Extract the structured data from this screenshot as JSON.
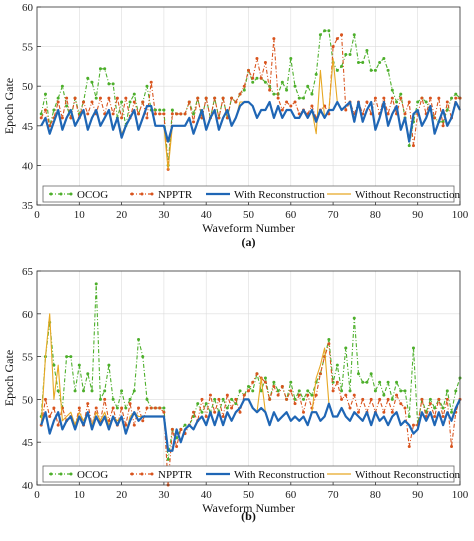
{
  "chart_data": [
    {
      "type": "line",
      "panel_label": "(a)",
      "xlabel": "Waveform Number",
      "ylabel": "Epoch Gate",
      "xlim": [
        0,
        100
      ],
      "ylim": [
        35,
        60
      ],
      "xticks": [
        0,
        10,
        20,
        30,
        40,
        50,
        60,
        70,
        80,
        90,
        100
      ],
      "yticks": [
        35,
        40,
        45,
        50,
        55,
        60
      ],
      "grid": true,
      "legend_position": "bottom",
      "x": [
        1,
        2,
        3,
        4,
        5,
        6,
        7,
        8,
        9,
        10,
        11,
        12,
        13,
        14,
        15,
        16,
        17,
        18,
        19,
        20,
        21,
        22,
        23,
        24,
        25,
        26,
        27,
        28,
        29,
        30,
        31,
        32,
        33,
        34,
        35,
        36,
        37,
        38,
        39,
        40,
        41,
        42,
        43,
        44,
        45,
        46,
        47,
        48,
        49,
        50,
        51,
        52,
        53,
        54,
        55,
        56,
        57,
        58,
        59,
        60,
        61,
        62,
        63,
        64,
        65,
        66,
        67,
        68,
        69,
        70,
        71,
        72,
        73,
        74,
        75,
        76,
        77,
        78,
        79,
        80,
        81,
        82,
        83,
        84,
        85,
        86,
        87,
        88,
        89,
        90,
        91,
        92,
        93,
        94,
        95,
        96,
        97,
        98,
        99,
        100
      ],
      "series": [
        {
          "name": "OCOG",
          "color": "#4daf2b",
          "style": "dash-dot",
          "marker": "dot",
          "values": [
            46.5,
            49,
            45,
            47,
            48.5,
            50,
            47.5,
            46,
            48.5,
            46.5,
            48,
            51,
            50.5,
            48.5,
            52.2,
            52.2,
            50.3,
            50.3,
            46,
            48,
            45,
            48,
            49,
            46.5,
            48,
            50,
            47,
            47,
            47,
            47,
            40,
            47,
            46.5,
            46.5,
            46.5,
            48,
            46.5,
            48.5,
            46,
            48.5,
            46,
            48.5,
            46,
            48.5,
            46,
            48.5,
            48,
            49,
            49.5,
            52,
            50.5,
            51,
            51,
            50.5,
            50,
            49,
            49,
            50.5,
            49.5,
            53.5,
            50,
            48.5,
            48.5,
            50,
            49,
            51.5,
            56.5,
            57,
            57,
            53,
            52,
            52.5,
            54,
            54,
            56.5,
            53,
            53,
            54.5,
            52,
            52,
            53,
            53.5,
            52,
            49.5,
            48,
            49,
            46,
            42.5,
            45.5,
            48,
            48.5,
            48,
            47,
            46,
            45.5,
            45.5,
            47,
            48.5,
            49,
            48.5
          ]
        },
        {
          "name": "NPPTR",
          "color": "#d9541e",
          "style": "dash-dot",
          "marker": "dot",
          "values": [
            46,
            47,
            45,
            46,
            48,
            46,
            48.5,
            46,
            48.5,
            46,
            48,
            46.5,
            48,
            46.5,
            48.5,
            46.5,
            48.5,
            46.5,
            48.5,
            46,
            48.5,
            46,
            48,
            46.5,
            48,
            46,
            50.5,
            46.5,
            46.5,
            46.5,
            39.5,
            46.5,
            46.5,
            46.5,
            46.5,
            48,
            45.5,
            48.5,
            46,
            48.5,
            46,
            48.5,
            46,
            48.5,
            46,
            48.5,
            48,
            49,
            50,
            52,
            51,
            53.5,
            51,
            53,
            49.5,
            56,
            48.5,
            47,
            48,
            47.5,
            48,
            46.5,
            47,
            46.5,
            47.5,
            46,
            47,
            47.5,
            46.5,
            55,
            56,
            56.5,
            47,
            48,
            46.5,
            48,
            46.5,
            48,
            46.5,
            48.5,
            46.5,
            48.5,
            46.5,
            48.5,
            46.5,
            48.5,
            46.5,
            48,
            42.5,
            46.5,
            48.5,
            46.5,
            48.5,
            46,
            48.5,
            45,
            48,
            46,
            48.5,
            48.5
          ]
        },
        {
          "name": "With Reconstruction",
          "color": "#1f66b5",
          "style": "solid",
          "marker": "none",
          "values": [
            45,
            46,
            44,
            45.5,
            47,
            44.5,
            46,
            47,
            45,
            46,
            47,
            44.5,
            46,
            47,
            45,
            46,
            47,
            44.5,
            46,
            43.5,
            45,
            46,
            47,
            44.5,
            46,
            47.5,
            47.5,
            45,
            45,
            45,
            43,
            45,
            45,
            45,
            45,
            46,
            44,
            45.5,
            47,
            44.5,
            46,
            47,
            44.5,
            46,
            47,
            45,
            46,
            47.5,
            48,
            48,
            47.5,
            46,
            47,
            47,
            48,
            46,
            47.5,
            46,
            47,
            47,
            46,
            46,
            47,
            46,
            47,
            45.5,
            47,
            46,
            47,
            47,
            48,
            47,
            47.5,
            48,
            45.5,
            48,
            45.5,
            47,
            48,
            44.5,
            46,
            48,
            45,
            46.5,
            47.5,
            44.5,
            46,
            43,
            46.5,
            47,
            45,
            46,
            47.5,
            44,
            45.5,
            47,
            45,
            46,
            48,
            47
          ]
        },
        {
          "name": "Without Reconstruction",
          "color": "#e7a824",
          "style": "solid",
          "marker": "none",
          "values": [
            45,
            46,
            44,
            45.5,
            47,
            44.5,
            46,
            47,
            45,
            46,
            47,
            44.5,
            46,
            47,
            45,
            46,
            47,
            44.5,
            46,
            44,
            45,
            46,
            47,
            44.5,
            46,
            47.5,
            47.5,
            45,
            45,
            45,
            39.5,
            45,
            45,
            45,
            45,
            46,
            44,
            45.5,
            47,
            44.5,
            46,
            47,
            44.5,
            46,
            47,
            45,
            46,
            48,
            48,
            48,
            47.5,
            46,
            47,
            47,
            48,
            46,
            47.5,
            46,
            47,
            47,
            46,
            46,
            47,
            46,
            47,
            44,
            52,
            46,
            47,
            53.5,
            48,
            47,
            47.5,
            48,
            45.5,
            48,
            45.5,
            47,
            48,
            44.5,
            46,
            48,
            45,
            46.5,
            47.5,
            44.5,
            46,
            43,
            46.5,
            47,
            45,
            46,
            47.5,
            44,
            45.5,
            47,
            45,
            46,
            48,
            47
          ]
        }
      ]
    },
    {
      "type": "line",
      "panel_label": "(b)",
      "xlabel": "Waveform Number",
      "ylabel": "Epoch Gate",
      "xlim": [
        0,
        100
      ],
      "ylim": [
        40,
        65
      ],
      "xticks": [
        0,
        10,
        20,
        30,
        40,
        50,
        60,
        70,
        80,
        90,
        100
      ],
      "yticks": [
        40,
        45,
        50,
        55,
        60,
        65
      ],
      "grid": true,
      "legend_position": "bottom",
      "x": [
        1,
        2,
        3,
        4,
        5,
        6,
        7,
        8,
        9,
        10,
        11,
        12,
        13,
        14,
        15,
        16,
        17,
        18,
        19,
        20,
        21,
        22,
        23,
        24,
        25,
        26,
        27,
        28,
        29,
        30,
        31,
        32,
        33,
        34,
        35,
        36,
        37,
        38,
        39,
        40,
        41,
        42,
        43,
        44,
        45,
        46,
        47,
        48,
        49,
        50,
        51,
        52,
        53,
        54,
        55,
        56,
        57,
        58,
        59,
        60,
        61,
        62,
        63,
        64,
        65,
        66,
        67,
        68,
        69,
        70,
        71,
        72,
        73,
        74,
        75,
        76,
        77,
        78,
        79,
        80,
        81,
        82,
        83,
        84,
        85,
        86,
        87,
        88,
        89,
        90,
        91,
        92,
        93,
        94,
        95,
        96,
        97,
        98,
        99,
        100
      ],
      "series": [
        {
          "name": "OCOG",
          "color": "#4daf2b",
          "style": "dash-dot",
          "marker": "dot",
          "values": [
            48,
            55,
            59,
            54,
            51,
            49,
            55,
            55,
            51,
            54,
            51,
            53,
            51,
            63.5,
            50,
            51,
            54,
            50,
            49,
            51,
            49,
            50,
            51,
            57,
            55,
            50,
            49,
            49,
            49,
            49,
            43,
            46.5,
            45.5,
            46.5,
            47,
            47,
            48,
            49.5,
            48.5,
            49.5,
            48.5,
            50,
            48.5,
            50,
            49,
            50,
            49.5,
            51,
            50.5,
            51.5,
            51,
            53,
            51,
            52.5,
            50,
            52,
            51,
            51.5,
            50,
            52,
            50,
            51,
            50,
            51,
            50.5,
            52,
            53,
            55,
            57,
            52,
            54,
            51,
            56,
            51,
            59.5,
            53,
            52,
            52,
            53,
            51,
            52,
            50.5,
            52,
            50,
            52,
            51,
            51,
            48,
            56,
            47,
            50,
            48.5,
            50,
            49,
            50,
            49,
            51,
            48.5,
            51,
            52.5
          ]
        },
        {
          "name": "NPPTR",
          "color": "#d9541e",
          "style": "dash-dot",
          "marker": "dot",
          "values": [
            47,
            50,
            48,
            49,
            47,
            49,
            47.5,
            48,
            47,
            49,
            47,
            49.5,
            47,
            49,
            47.5,
            50,
            47.5,
            49,
            47,
            49,
            47,
            49.5,
            47,
            49,
            47.5,
            49,
            49,
            49,
            49,
            48.5,
            40,
            46.5,
            44.5,
            46.5,
            46,
            47,
            48.5,
            47.5,
            50,
            48,
            50.5,
            48.5,
            50,
            48,
            50.5,
            49,
            50,
            48.5,
            50.5,
            51,
            52,
            53,
            52.5,
            52,
            50,
            51.5,
            50.5,
            51.5,
            50,
            51,
            49.5,
            50.5,
            48.5,
            50.5,
            49,
            50.5,
            53,
            55,
            56.5,
            51,
            52,
            50,
            50.5,
            49,
            50.5,
            48.5,
            50,
            48.5,
            50,
            48.5,
            50,
            48.5,
            50,
            48.5,
            50.5,
            49.5,
            49,
            44.5,
            47,
            47,
            50,
            48,
            49.5,
            48,
            50,
            48,
            50,
            44.5,
            48.5,
            50
          ]
        },
        {
          "name": "With Reconstruction",
          "color": "#1f66b5",
          "style": "solid",
          "marker": "none",
          "values": [
            47,
            48.5,
            46,
            47.5,
            48.5,
            46.5,
            47.5,
            48,
            46.5,
            48,
            47,
            48.5,
            46.5,
            48,
            47,
            48,
            46.5,
            48,
            47,
            48,
            46,
            47.5,
            48.5,
            47.5,
            48,
            48,
            48,
            48,
            48,
            48,
            44,
            44,
            46.5,
            45,
            46.5,
            47,
            46.5,
            47.5,
            48,
            47,
            48.5,
            47,
            48.5,
            47,
            48.5,
            47.5,
            48.5,
            49,
            50,
            50,
            49,
            48.5,
            49,
            48.5,
            47,
            48.5,
            47.5,
            48,
            48.5,
            47.5,
            48,
            47.5,
            48,
            47,
            48.5,
            48.5,
            47.5,
            48,
            49.5,
            48,
            48,
            49,
            48,
            47.5,
            48.5,
            48,
            47.5,
            48.5,
            47,
            48.5,
            47.5,
            48,
            47,
            48,
            48.5,
            47,
            47.5,
            47,
            46,
            46.5,
            48.5,
            47.5,
            48.5,
            47,
            48.5,
            47,
            48.5,
            47.5,
            49,
            50
          ]
        },
        {
          "name": "Without Reconstruction",
          "color": "#e7a824",
          "style": "solid",
          "marker": "none",
          "values": [
            47,
            55,
            60,
            50,
            54,
            47.5,
            48,
            48.5,
            47,
            48.5,
            47.5,
            48.5,
            47,
            48.5,
            47.5,
            48.5,
            47,
            48,
            47.5,
            48,
            46,
            48,
            48.5,
            48,
            48,
            48,
            48,
            48,
            48,
            48,
            44,
            44,
            46.5,
            45,
            46.5,
            47,
            46.5,
            47.5,
            48,
            47,
            48.5,
            47,
            48.5,
            47,
            48.5,
            47.5,
            48.5,
            49,
            50,
            50,
            49,
            48.5,
            52.5,
            48.5,
            47,
            48.5,
            47.5,
            48,
            48.5,
            47.5,
            48,
            47.5,
            48,
            47,
            48.5,
            52.5,
            54,
            56,
            49.5,
            48,
            48,
            49,
            48,
            47.5,
            48.5,
            48,
            47.5,
            48.5,
            47,
            48.5,
            47.5,
            48,
            47,
            48,
            48.5,
            47,
            47.5,
            47,
            46,
            46.5,
            48.5,
            47.5,
            48.5,
            47,
            48.5,
            47,
            48.5,
            47.5,
            49,
            50
          ]
        }
      ]
    }
  ]
}
